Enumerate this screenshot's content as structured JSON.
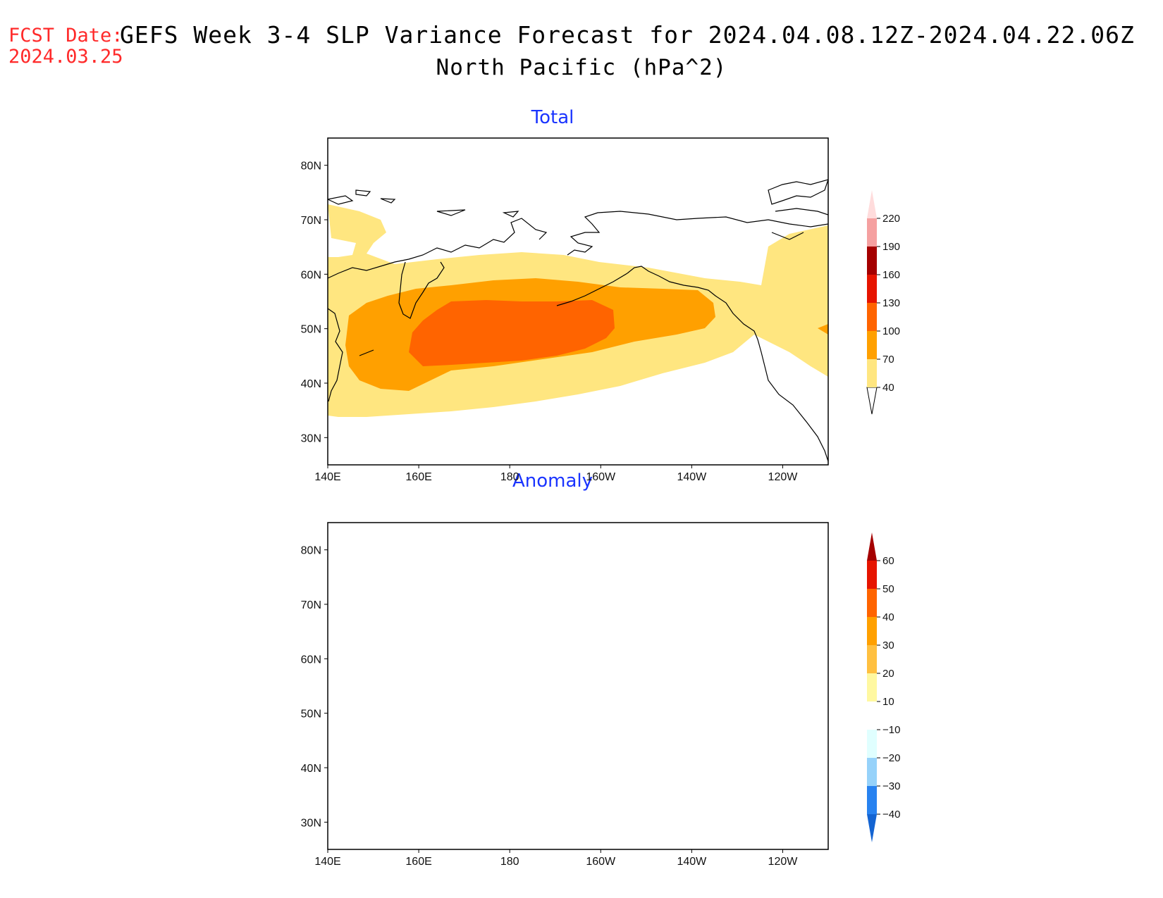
{
  "header": {
    "fcst_label": "FCST Date:",
    "fcst_date": "2024.03.25",
    "title": "GEFS Week 3-4 SLP Variance Forecast for 2024.04.08.12Z-2024.04.22.06Z",
    "subtitle": "North Pacific (hPa^2)"
  },
  "axes": {
    "lon_ticks": [
      "140E",
      "160E",
      "180",
      "160W",
      "140W",
      "120W"
    ],
    "lat_ticks": [
      "80N",
      "70N",
      "60N",
      "50N",
      "40N",
      "30N"
    ],
    "lon_range": [
      140,
      250
    ],
    "lat_range": [
      25,
      85
    ]
  },
  "panels": [
    {
      "title": "Total",
      "colorbar": {
        "levels": [
          "40",
          "70",
          "100",
          "130",
          "160",
          "190",
          "220"
        ],
        "colors": [
          "#ffe680",
          "#ffa000",
          "#ff6400",
          "#e61400",
          "#a50000",
          "#f5a0a0",
          "#ffdcdc"
        ]
      },
      "contour_fills": [
        "#ffe680",
        "#ffa000",
        "#ff6400"
      ]
    },
    {
      "title": "Anomaly",
      "colorbar": {
        "levels": [
          "60",
          "50",
          "40",
          "30",
          "20",
          "10",
          "−10",
          "−20",
          "−30",
          "−40"
        ],
        "colors": [
          "#a50000",
          "#e61400",
          "#ff6400",
          "#ffa000",
          "#ffc040",
          "#fff8a0",
          "#ffffff",
          "#e0ffff",
          "#96d2fa",
          "#2882f0",
          "#1464d2"
        ]
      },
      "contour_fills": [
        "#e0ffff",
        "#96d2fa"
      ]
    }
  ]
}
